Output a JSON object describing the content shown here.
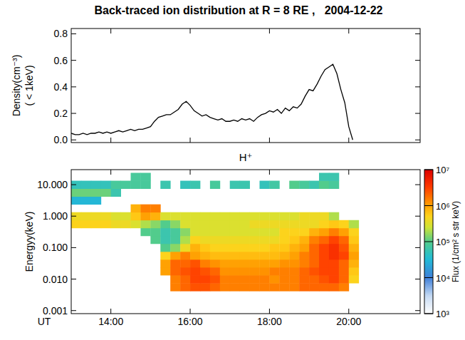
{
  "chart_data": [
    {
      "type": "line",
      "title": "Back-traced ion distribution at R = 8 RE ,   2004-12-22",
      "ylabel": [
        "Density(cm⁻³)",
        "( < 1keV)"
      ],
      "x": [
        13.0,
        13.1,
        13.2,
        13.3,
        13.4,
        13.5,
        13.6,
        13.7,
        13.8,
        13.9,
        14.0,
        14.1,
        14.2,
        14.3,
        14.4,
        14.5,
        14.6,
        14.7,
        14.8,
        14.9,
        15.0,
        15.1,
        15.2,
        15.3,
        15.4,
        15.5,
        15.6,
        15.7,
        15.8,
        15.9,
        16.0,
        16.1,
        16.2,
        16.3,
        16.4,
        16.5,
        16.6,
        16.7,
        16.8,
        16.9,
        17.0,
        17.1,
        17.2,
        17.3,
        17.4,
        17.5,
        17.6,
        17.7,
        17.8,
        17.9,
        18.0,
        18.1,
        18.2,
        18.3,
        18.4,
        18.5,
        18.6,
        18.7,
        18.8,
        18.9,
        19.0,
        19.1,
        19.2,
        19.3,
        19.4,
        19.5,
        19.6,
        19.7,
        19.8,
        19.9,
        20.0,
        20.1
      ],
      "values": [
        0.05,
        0.04,
        0.04,
        0.05,
        0.04,
        0.05,
        0.05,
        0.06,
        0.05,
        0.06,
        0.05,
        0.06,
        0.07,
        0.06,
        0.07,
        0.08,
        0.07,
        0.08,
        0.08,
        0.09,
        0.1,
        0.14,
        0.17,
        0.18,
        0.19,
        0.19,
        0.21,
        0.23,
        0.27,
        0.29,
        0.26,
        0.22,
        0.2,
        0.18,
        0.19,
        0.17,
        0.16,
        0.15,
        0.16,
        0.14,
        0.14,
        0.15,
        0.14,
        0.16,
        0.15,
        0.16,
        0.14,
        0.17,
        0.19,
        0.2,
        0.22,
        0.21,
        0.23,
        0.2,
        0.24,
        0.22,
        0.25,
        0.24,
        0.27,
        0.33,
        0.38,
        0.37,
        0.42,
        0.48,
        0.53,
        0.55,
        0.57,
        0.5,
        0.38,
        0.28,
        0.1,
        0.0
      ],
      "color": "#000000",
      "xlim": [
        13.0,
        21.8
      ],
      "ylim": [
        -0.02,
        0.84
      ],
      "xticks": [
        {
          "value": 14,
          "label": "14:00"
        },
        {
          "value": 16,
          "label": "16:00"
        },
        {
          "value": 18,
          "label": "18:00"
        },
        {
          "value": 20,
          "label": "20:00"
        }
      ],
      "yticks": [
        {
          "value": 0,
          "label": "0.0"
        },
        0.2,
        0.4,
        0.6,
        0.8
      ],
      "tick_labels": "y"
    },
    {
      "type": "heatmap",
      "title": "H⁺",
      "xlabel": "UT",
      "ylabel": "Energyy(keV)",
      "log": "y",
      "x": [
        13.125,
        13.375,
        13.625,
        13.875,
        14.125,
        14.375,
        14.625,
        14.875,
        15.125,
        15.375,
        15.625,
        15.875,
        16.125,
        16.375,
        16.625,
        16.875,
        17.125,
        17.375,
        17.625,
        17.875,
        18.125,
        18.375,
        18.625,
        18.875,
        19.125,
        19.375,
        19.625,
        19.875,
        20.125
      ],
      "y": [
        0.0056,
        0.01,
        0.0178,
        0.0316,
        0.0562,
        0.1,
        0.178,
        0.316,
        0.562,
        1,
        1.78,
        3.16,
        5.62,
        10,
        17.8
      ],
      "cells": [
        [
          null,
          null,
          null,
          null,
          null,
          null,
          null,
          null,
          null,
          null,
          1500000.0,
          2000000.0,
          2500000.0,
          2500000.0,
          2000000.0,
          1500000.0,
          1500000.0,
          1500000.0,
          1500000.0,
          1500000.0,
          1500000.0,
          1500000.0,
          1500000.0,
          2000000.0,
          2000000.0,
          2000000.0,
          2000000.0,
          1500000.0,
          null
        ],
        [
          null,
          null,
          null,
          null,
          null,
          null,
          null,
          null,
          null,
          null,
          1500000.0,
          2000000.0,
          3000000.0,
          3000000.0,
          2500000.0,
          1500000.0,
          1500000.0,
          1500000.0,
          1500000.0,
          1500000.0,
          1200000.0,
          1500000.0,
          1500000.0,
          2000000.0,
          2000000.0,
          2500000.0,
          3000000.0,
          2000000.0,
          500000.0
        ],
        [
          null,
          null,
          null,
          null,
          null,
          null,
          null,
          null,
          null,
          1000000.0,
          2000000.0,
          2500000.0,
          3000000.0,
          2500000.0,
          2000000.0,
          1200000.0,
          1200000.0,
          1200000.0,
          1200000.0,
          1200000.0,
          1500000.0,
          1500000.0,
          1500000.0,
          2000000.0,
          2500000.0,
          3000000.0,
          3000000.0,
          2000000.0,
          600000.0
        ],
        [
          null,
          null,
          null,
          null,
          null,
          null,
          null,
          null,
          null,
          1000000.0,
          2000000.0,
          2000000.0,
          2500000.0,
          1500000.0,
          1200000.0,
          1000000.0,
          1000000.0,
          1000000.0,
          1000000.0,
          1000000.0,
          1000000.0,
          1200000.0,
          1200000.0,
          1500000.0,
          2000000.0,
          3000000.0,
          3000000.0,
          2000000.0,
          800000.0
        ],
        [
          null,
          null,
          null,
          null,
          null,
          null,
          null,
          null,
          null,
          500000.0,
          1000000.0,
          1500000.0,
          1000000.0,
          800000.0,
          700000.0,
          700000.0,
          700000.0,
          700000.0,
          700000.0,
          700000.0,
          700000.0,
          800000.0,
          1000000.0,
          1500000.0,
          2000000.0,
          3000000.0,
          4000000.0,
          3000000.0,
          1000000.0
        ],
        [
          null,
          null,
          null,
          null,
          null,
          null,
          null,
          null,
          null,
          100000.0,
          150000.0,
          400000.0,
          800000.0,
          600000.0,
          500000.0,
          500000.0,
          500000.0,
          500000.0,
          500000.0,
          500000.0,
          600000.0,
          600000.0,
          800000.0,
          1000000.0,
          2000000.0,
          3000000.0,
          4000000.0,
          2500000.0,
          800000.0
        ],
        [
          null,
          null,
          null,
          null,
          null,
          null,
          null,
          null,
          100000.0,
          60000.0,
          80000.0,
          200000.0,
          500000.0,
          400000.0,
          400000.0,
          400000.0,
          400000.0,
          400000.0,
          400000.0,
          400000.0,
          400000.0,
          500000.0,
          600000.0,
          800000.0,
          1500000.0,
          2000000.0,
          3000000.0,
          2000000.0,
          600000.0
        ],
        [
          null,
          null,
          null,
          null,
          null,
          null,
          null,
          100000.0,
          100000.0,
          60000.0,
          80000.0,
          150000.0,
          300000.0,
          300000.0,
          300000.0,
          300000.0,
          300000.0,
          300000.0,
          300000.0,
          300000.0,
          300000.0,
          500000.0,
          500000.0,
          500000.0,
          800000.0,
          1000000.0,
          1500000.0,
          1000000.0,
          500000.0
        ],
        [
          500000.0,
          500000.0,
          500000.0,
          500000.0,
          400000.0,
          400000.0,
          300000.0,
          200000.0,
          150000.0,
          100000.0,
          150000.0,
          300000.0,
          300000.0,
          300000.0,
          300000.0,
          300000.0,
          300000.0,
          300000.0,
          400000.0,
          400000.0,
          400000.0,
          400000.0,
          400000.0,
          400000.0,
          400000.0,
          500000.0,
          600000.0,
          500000.0,
          200000.0
        ],
        [
          400000.0,
          400000.0,
          400000.0,
          400000.0,
          300000.0,
          300000.0,
          600000.0,
          1000000.0,
          800000.0,
          300000.0,
          300000.0,
          300000.0,
          300000.0,
          300000.0,
          300000.0,
          300000.0,
          300000.0,
          300000.0,
          300000.0,
          300000.0,
          300000.0,
          300000.0,
          300000.0,
          400000.0,
          400000.0,
          400000.0,
          200000.0,
          null,
          null
        ],
        [
          null,
          null,
          null,
          null,
          null,
          null,
          800000.0,
          1500000.0,
          1500000.0,
          null,
          null,
          null,
          null,
          null,
          null,
          null,
          null,
          null,
          null,
          null,
          null,
          null,
          null,
          null,
          null,
          null,
          null,
          null,
          null
        ],
        [
          30000.0,
          30000.0,
          30000.0,
          null,
          null,
          null,
          null,
          null,
          null,
          null,
          null,
          null,
          null,
          null,
          null,
          null,
          null,
          null,
          null,
          null,
          null,
          null,
          null,
          null,
          null,
          null,
          null,
          null,
          null
        ],
        [
          120000.0,
          120000.0,
          120000.0,
          120000.0,
          60000.0,
          null,
          null,
          null,
          null,
          null,
          null,
          null,
          null,
          null,
          null,
          null,
          null,
          null,
          null,
          null,
          null,
          null,
          null,
          null,
          null,
          null,
          null,
          null,
          null
        ],
        [
          50000.0,
          50000.0,
          50000.0,
          50000.0,
          80000.0,
          80000.0,
          80000.0,
          80000.0,
          null,
          60000.0,
          null,
          50000.0,
          60000.0,
          null,
          80000.0,
          null,
          60000.0,
          60000.0,
          null,
          50000.0,
          70000.0,
          null,
          100000.0,
          80000.0,
          60000.0,
          100000.0,
          80000.0,
          null,
          null
        ],
        [
          null,
          null,
          null,
          null,
          null,
          null,
          80000.0,
          80000.0,
          null,
          null,
          null,
          null,
          null,
          null,
          null,
          null,
          null,
          null,
          null,
          null,
          null,
          null,
          null,
          null,
          null,
          60000.0,
          60000.0,
          null,
          null
        ]
      ],
      "xlim": [
        13.0,
        21.8
      ],
      "ylim": [
        0.0008,
        30
      ],
      "xticks": [
        {
          "value": 14,
          "label": "14:00"
        },
        {
          "value": 16,
          "label": "16:00"
        },
        {
          "value": 18,
          "label": "18:00"
        },
        {
          "value": 20,
          "label": "20:00"
        }
      ],
      "yticks": [
        {
          "value": 0.001,
          "label": "0.001"
        },
        {
          "value": 0.01,
          "label": "0.010"
        },
        {
          "value": 0.1,
          "label": "0.100"
        },
        {
          "value": 1,
          "label": "1.000"
        },
        {
          "value": 10,
          "label": "10.000"
        }
      ],
      "colorbar": {
        "label": "Flux (1/cm² s str keV)",
        "range": [
          1000,
          10000000
        ],
        "ticks": [
          {
            "value": 1000,
            "label": "10³"
          },
          {
            "value": 10000,
            "label": "10⁴"
          },
          {
            "value": 100000,
            "label": "10⁵"
          },
          {
            "value": 1000000,
            "label": "10⁶"
          },
          {
            "value": 10000000,
            "label": "10⁷"
          }
        ]
      }
    }
  ]
}
